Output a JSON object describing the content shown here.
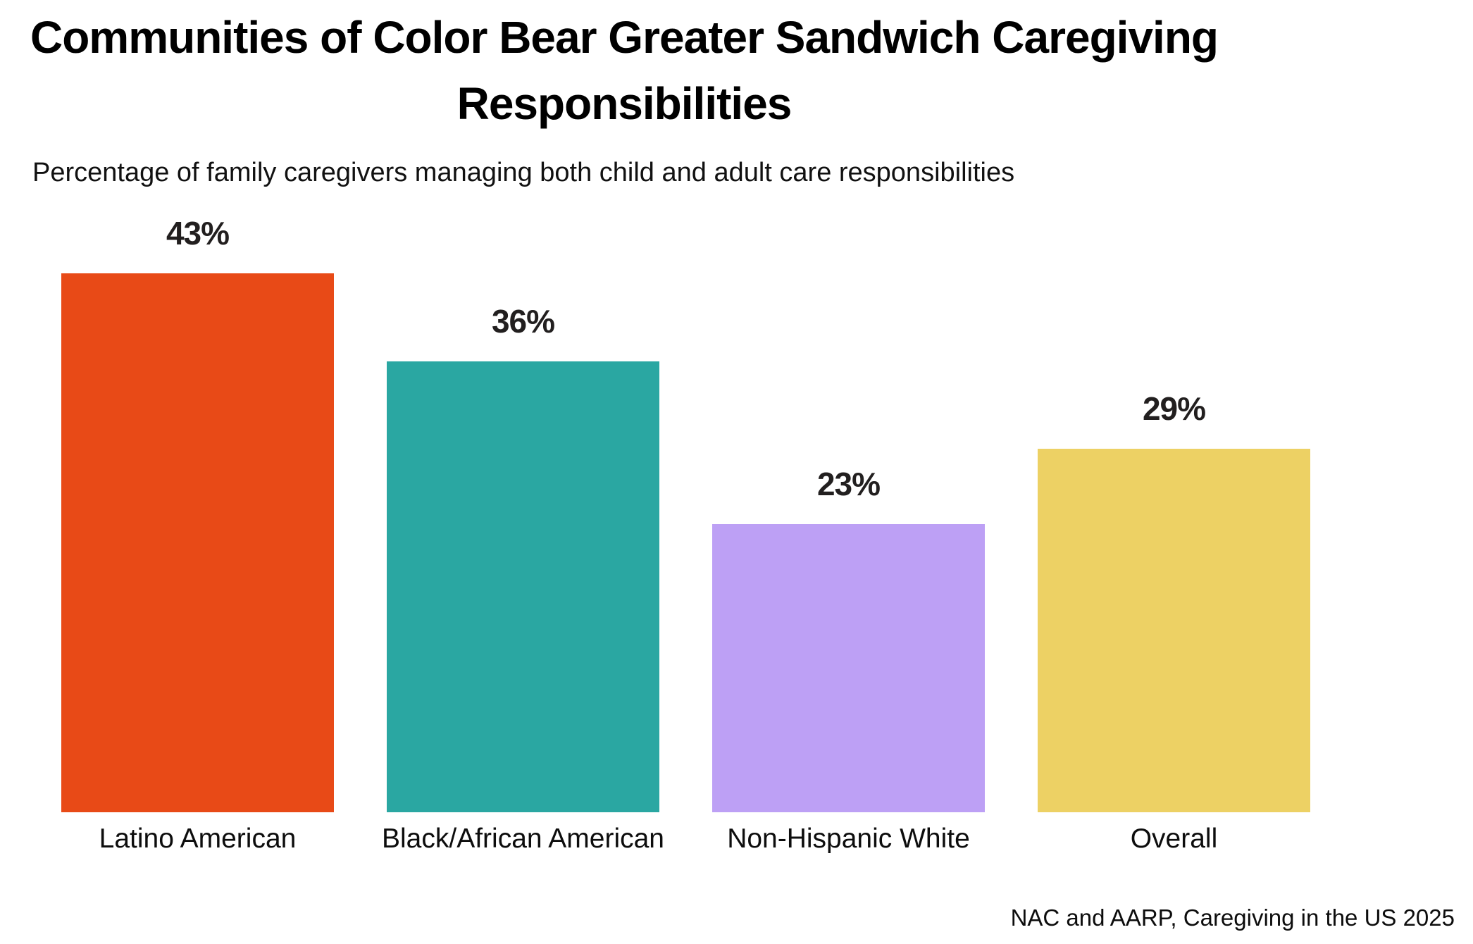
{
  "header": {
    "title_lines": [
      "Communities of Color Bear Greater Sandwich Caregiving",
      "Responsibilities"
    ],
    "subtitle": "Percentage of family caregivers managing both child and adult care responsibilities"
  },
  "chart_data": {
    "type": "bar",
    "title": "Communities of Color Bear Greater Sandwich Caregiving Responsibilities",
    "subtitle": "Percentage of family caregivers managing both child and adult care responsibilities",
    "categories": [
      "Latino American",
      "Black/African American",
      "Non-Hispanic White",
      "Overall"
    ],
    "values": [
      43,
      36,
      23,
      29
    ],
    "value_suffix": "%",
    "bar_colors": [
      "#E84A17",
      "#2AA7A2",
      "#BDA0F5",
      "#EDD164"
    ],
    "xlabel": "",
    "ylabel": "",
    "grid": false,
    "legend": false,
    "axes_shown": false,
    "value_labels_position": "above-bar",
    "source": "NAC and AARP, Caregiving in the US 2025"
  },
  "footer": {
    "source": "NAC and AARP, Caregiving in the US 2025"
  },
  "colors": {
    "background": "#FFFFFF",
    "title_text": "#000000",
    "value_label_text": "#221F1F",
    "category_label_text": "#0D0D0D"
  }
}
